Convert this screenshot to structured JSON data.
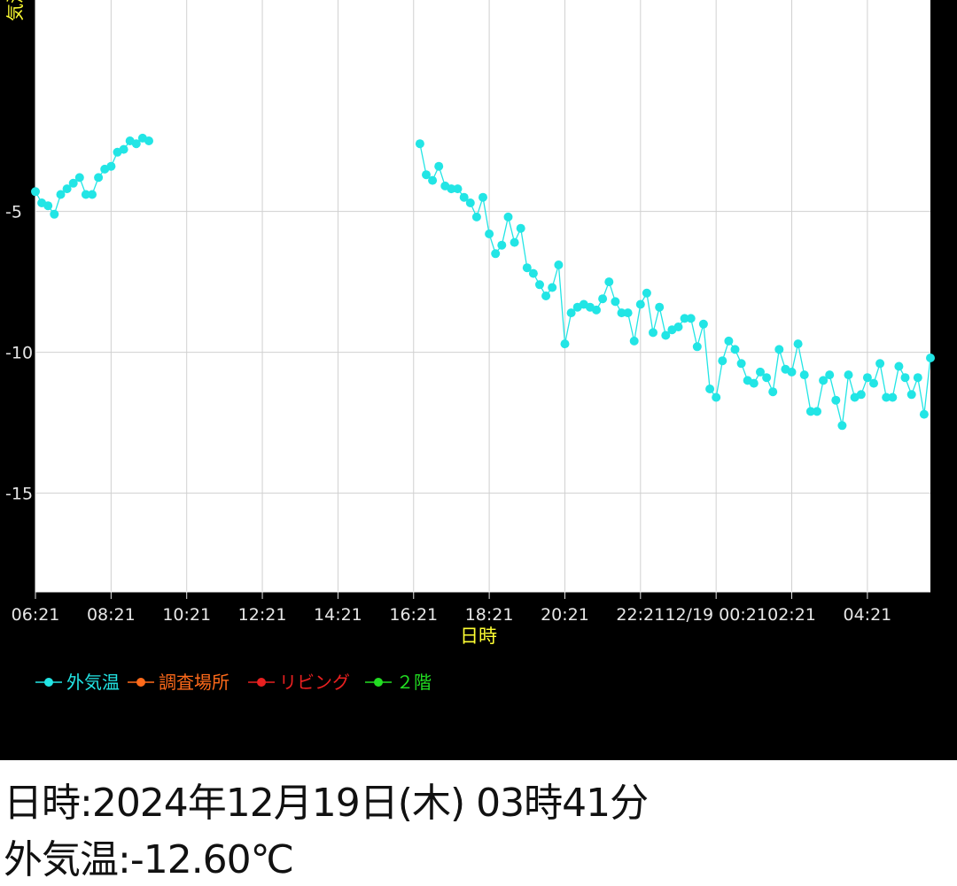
{
  "chart_data": {
    "type": "line",
    "ylabel": "気温",
    "xlabel": "日時",
    "ylim": [
      -18.5,
      2.5
    ],
    "yticks": [
      -5,
      -10,
      -15
    ],
    "ytick_labels": [
      "-5",
      "-10",
      "-15"
    ],
    "xlim": [
      0,
      1420
    ],
    "xticks": [
      0,
      120,
      240,
      360,
      480,
      600,
      720,
      840,
      960,
      1080,
      1200,
      1320
    ],
    "xtick_labels": [
      "06:21",
      "08:21",
      "10:21",
      "12:21",
      "14:21",
      "16:21",
      "18:21",
      "20:21",
      "22:21",
      "12/19 00:21",
      "02:21",
      "04:21"
    ],
    "grid": true,
    "legend_position": "bottom-left",
    "legend": [
      {
        "name": "外気温",
        "color": "#22e5e5"
      },
      {
        "name": "調査場所",
        "color": "#ff6a1a"
      },
      {
        "name": "リビング",
        "color": "#e82020"
      },
      {
        "name": "２階",
        "color": "#22dd22"
      }
    ],
    "series": [
      {
        "name": "外気温",
        "color": "#22e5e5",
        "segments": [
          {
            "x": [
              0,
              10,
              20,
              30,
              40,
              50,
              60,
              70,
              80,
              90,
              100,
              110,
              120,
              130,
              140,
              150,
              160,
              170,
              180
            ],
            "y": [
              -4.3,
              -4.7,
              -4.8,
              -5.1,
              -4.4,
              -4.2,
              -4.0,
              -3.8,
              -4.4,
              -4.4,
              -3.8,
              -3.5,
              -3.4,
              -2.9,
              -2.8,
              -2.5,
              -2.6,
              -2.4,
              -2.5
            ]
          },
          {
            "x": [
              610,
              620,
              630,
              640,
              650,
              660,
              670,
              680,
              690,
              700,
              710,
              720,
              730,
              740,
              750,
              760,
              770,
              780,
              790,
              800,
              810,
              820,
              830,
              840,
              850,
              860,
              870,
              880,
              890,
              900,
              910,
              920,
              930,
              940,
              950,
              960,
              970,
              980,
              990,
              1000,
              1010,
              1020,
              1030,
              1040,
              1050,
              1060,
              1070,
              1080,
              1090,
              1100,
              1110,
              1120,
              1130,
              1140,
              1150,
              1160,
              1170,
              1180,
              1190,
              1200,
              1210,
              1220,
              1230,
              1240,
              1250,
              1260,
              1270,
              1280,
              1290,
              1300,
              1310,
              1320,
              1330,
              1340,
              1350,
              1360,
              1370,
              1380,
              1390,
              1400,
              1410,
              1420
            ],
            "y": [
              -2.6,
              -3.7,
              -3.9,
              -3.4,
              -4.1,
              -4.2,
              -4.2,
              -4.5,
              -4.7,
              -5.2,
              -4.5,
              -5.8,
              -6.5,
              -6.2,
              -5.2,
              -6.1,
              -5.6,
              -7.0,
              -7.2,
              -7.6,
              -8.0,
              -7.7,
              -6.9,
              -9.7,
              -8.6,
              -8.4,
              -8.3,
              -8.4,
              -8.5,
              -8.1,
              -7.5,
              -8.2,
              -8.6,
              -8.6,
              -9.6,
              -8.3,
              -7.9,
              -9.3,
              -8.4,
              -9.4,
              -9.2,
              -9.1,
              -8.8,
              -8.8,
              -9.8,
              -9.0,
              -11.3,
              -11.6,
              -10.3,
              -9.6,
              -9.9,
              -10.4,
              -11.0,
              -11.1,
              -10.7,
              -10.9,
              -11.4,
              -9.9,
              -10.6,
              -10.7,
              -9.7,
              -10.8,
              -12.1,
              -12.1,
              -11.0,
              -10.8,
              -11.7,
              -12.6,
              -10.8,
              -11.6,
              -11.5,
              -10.9,
              -11.1,
              -10.4,
              -11.6,
              -11.6,
              -10.5,
              -10.9,
              -11.5,
              -10.9,
              -12.2,
              -10.2
            ]
          }
        ]
      }
    ]
  },
  "info": {
    "datetime": "日時:2024年12月19日(木) 03時41分",
    "temperature": "外気温:-12.60℃"
  },
  "colors": {
    "chart_background": "#000000",
    "grid": "#d0d0d0",
    "axis_label": "#ffff33",
    "tick_label": "#e6e6e6"
  }
}
